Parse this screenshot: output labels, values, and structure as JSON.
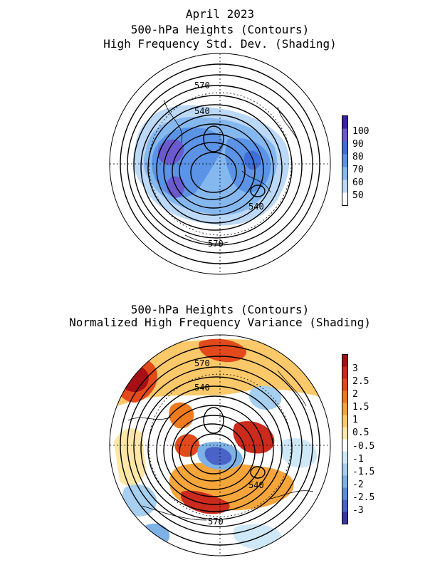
{
  "figure": {
    "date": "April 2023"
  },
  "panel1": {
    "title_line1": "500-hPa Heights (Contours)",
    "title_line2": "High Frequency Std. Dev. (Shading)",
    "contour_labels": [
      "570",
      "540",
      "540",
      "570"
    ],
    "colorbar": {
      "labels": [
        "100",
        "90",
        "80",
        "70",
        "60",
        "50"
      ],
      "colors": [
        "#3b1fa8",
        "#6a5acd",
        "#3f6fd8",
        "#5b93e6",
        "#86b8f0",
        "#bcd9f7",
        "#ffffff"
      ]
    }
  },
  "panel2": {
    "title_line1": "500-hPa Heights (Contours)",
    "title_line2": "Normalized High Frequency Variance (Shading)",
    "contour_labels": [
      "570",
      "540",
      "540",
      "570"
    ],
    "colorbar": {
      "labels": [
        "3",
        "2.5",
        "2",
        "1.5",
        "1",
        "0.5",
        "-0.5",
        "-1",
        "-1.5",
        "-2",
        "-2.5",
        "-3"
      ],
      "colors": [
        "#a50f15",
        "#cb2a1c",
        "#e34a1b",
        "#f07a1e",
        "#f6a53a",
        "#fbc96a",
        "#fde6a6",
        "#ffffff",
        "#cfe8f8",
        "#a6cff0",
        "#7eb2e6",
        "#5b8fdc",
        "#4a63c8",
        "#3a35a8"
      ]
    }
  }
}
